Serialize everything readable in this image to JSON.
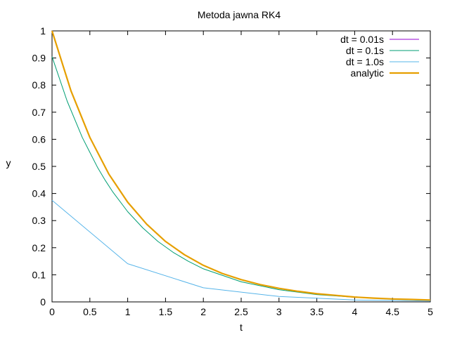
{
  "chart_data": {
    "type": "line",
    "title": "Metoda jawna RK4",
    "xlabel": "t",
    "ylabel": "y",
    "xlim": [
      0,
      5
    ],
    "ylim": [
      0,
      1
    ],
    "xticks": [
      "0",
      "0.5",
      "1",
      "1.5",
      "2",
      "2.5",
      "3",
      "3.5",
      "4",
      "4.5",
      "5"
    ],
    "yticks": [
      "0",
      "0.1",
      "0.2",
      "0.3",
      "0.4",
      "0.5",
      "0.6",
      "0.7",
      "0.8",
      "0.9",
      "1"
    ],
    "grid": false,
    "legend_position": "top-right",
    "series": [
      {
        "name": "dt = 0.01s",
        "color": "#9400d3",
        "x": [
          0,
          0.25,
          0.5,
          0.75,
          1,
          1.25,
          1.5,
          1.75,
          2,
          2.25,
          2.5,
          2.75,
          3,
          3.25,
          3.5,
          3.75,
          4,
          4.25,
          4.5,
          4.75,
          5
        ],
        "y": [
          1,
          0.779,
          0.607,
          0.472,
          0.368,
          0.287,
          0.223,
          0.174,
          0.135,
          0.105,
          0.082,
          0.064,
          0.05,
          0.039,
          0.03,
          0.024,
          0.018,
          0.014,
          0.011,
          0.009,
          0.007
        ]
      },
      {
        "name": "dt = 0.1s",
        "color": "#009e73",
        "x": [
          0,
          0.2,
          0.4,
          0.6,
          0.7,
          0.8,
          1,
          1.2,
          1.4,
          1.6,
          1.8,
          2,
          2.5,
          3,
          3.5,
          4,
          4.5,
          5
        ],
        "y": [
          0.905,
          0.741,
          0.607,
          0.497,
          0.45,
          0.407,
          0.333,
          0.273,
          0.223,
          0.183,
          0.15,
          0.122,
          0.074,
          0.045,
          0.027,
          0.017,
          0.01,
          0.006
        ]
      },
      {
        "name": "dt = 1.0s",
        "color": "#56b4e9",
        "x": [
          0,
          1,
          2,
          3,
          4,
          5
        ],
        "y": [
          0.375,
          0.141,
          0.052,
          0.02,
          0.007,
          0.003
        ]
      },
      {
        "name": "analytic",
        "color": "#e69f00",
        "x": [
          0,
          0.25,
          0.5,
          0.75,
          1,
          1.25,
          1.5,
          1.75,
          2,
          2.25,
          2.5,
          2.75,
          3,
          3.25,
          3.5,
          3.75,
          4,
          4.25,
          4.5,
          4.75,
          5
        ],
        "y": [
          1,
          0.779,
          0.607,
          0.472,
          0.368,
          0.287,
          0.223,
          0.174,
          0.135,
          0.105,
          0.082,
          0.064,
          0.05,
          0.039,
          0.03,
          0.024,
          0.018,
          0.014,
          0.011,
          0.009,
          0.007
        ]
      }
    ]
  }
}
